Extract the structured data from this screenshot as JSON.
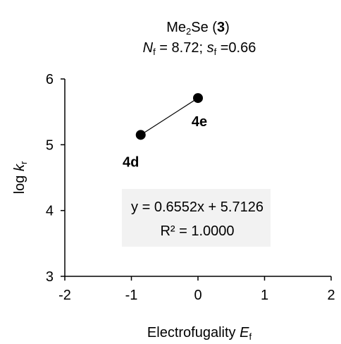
{
  "chart_data": {
    "type": "scatter",
    "title_line1": {
      "prefix": "Me",
      "sub": "2",
      "suffix": "Se (",
      "bold": "3",
      "close": ")"
    },
    "title_line2": {
      "n_sym": "N",
      "n_sub": "f",
      "n_val": " = 8.72; ",
      "s_sym": "s",
      "s_sub": "f",
      "s_val": " =0.66"
    },
    "xlabel": {
      "text": "Electrofugality ",
      "sym": "E",
      "sub": "f"
    },
    "ylabel": {
      "text": "log ",
      "sym": "k",
      "sub": "r"
    },
    "xlim": [
      -2,
      2
    ],
    "ylim": [
      3,
      6
    ],
    "xticks": [
      -2,
      -1,
      0,
      1,
      2
    ],
    "yticks": [
      3,
      4,
      5,
      6
    ],
    "series": [
      {
        "points": [
          {
            "x": -0.86,
            "y": 5.15,
            "label": "4d"
          },
          {
            "x": 0.0,
            "y": 5.71,
            "label": "4e"
          }
        ]
      }
    ],
    "annotation": {
      "line1": "y = 0.6552x + 5.7126",
      "line2": "R² = 1.0000"
    },
    "grid": false,
    "colors": {
      "marker": "#000000",
      "annotation_bg": "#f2f2f2"
    }
  }
}
